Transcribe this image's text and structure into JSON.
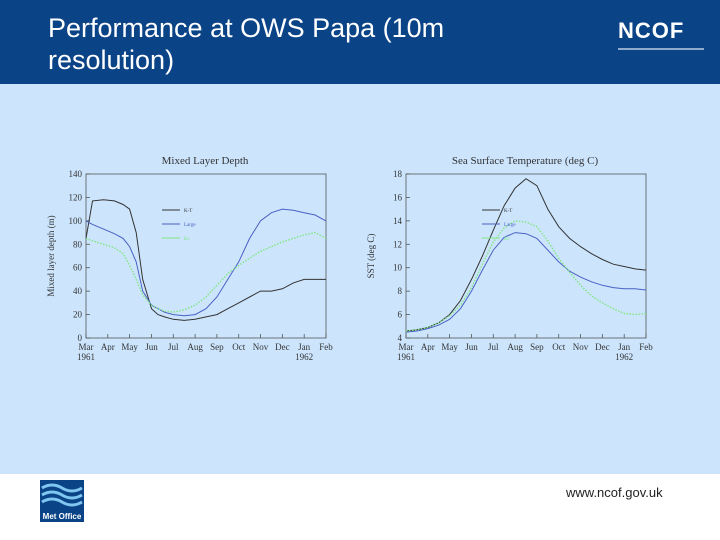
{
  "header": {
    "title": "Performance at OWS Papa (10m resolution)",
    "title_line1": "Performance at OWS Papa (10m",
    "title_line2": "resolution)",
    "brand": "NCOF"
  },
  "footer": {
    "url": "www.ncof.gov.uk",
    "logo_text": "Met Office"
  },
  "colors": {
    "header": "#0a4487",
    "panel": "#cce5fd",
    "series_dark": "#333333",
    "series_blue": "#4a60c4",
    "series_green": "#7fe57f"
  },
  "chart_data": [
    {
      "type": "line",
      "title": "Mixed Layer Depth",
      "ylabel": "Mixed layer depth (m)",
      "ylim": [
        0,
        140
      ],
      "yticks": [
        0,
        20,
        40,
        60,
        80,
        100,
        120,
        140
      ],
      "x_labels": [
        "Mar",
        "Apr",
        "May",
        "Jun",
        "Jul",
        "Aug",
        "Sep",
        "Oct",
        "Nov",
        "Dec",
        "Jan",
        "Feb"
      ],
      "x_year_labels": [
        {
          "label": "1961",
          "month_index": 0
        },
        {
          "label": "1962",
          "month_index": 10
        }
      ],
      "legend": [
        "K-T",
        "Large",
        "Kc"
      ],
      "series": [
        {
          "name": "K-T",
          "color": "#333333",
          "x": [
            0,
            0.3,
            0.8,
            1.3,
            1.7,
            2.0,
            2.3,
            2.6,
            3.0,
            3.3,
            3.6,
            4.0,
            4.5,
            5.0,
            5.5,
            6.0,
            6.5,
            7.0,
            7.5,
            8.0,
            8.5,
            9.0,
            9.5,
            10.0,
            10.5,
            11.0
          ],
          "values": [
            85,
            117,
            118,
            117,
            114,
            110,
            90,
            50,
            25,
            20,
            18,
            16,
            15,
            16,
            18,
            20,
            25,
            30,
            35,
            40,
            40,
            42,
            47,
            50,
            50,
            50
          ]
        },
        {
          "name": "Large",
          "color": "#4a60c4",
          "x": [
            0,
            0.3,
            0.8,
            1.3,
            1.7,
            2.0,
            2.3,
            2.6,
            3.0,
            3.3,
            3.6,
            4.0,
            4.5,
            5.0,
            5.5,
            6.0,
            6.5,
            7.0,
            7.5,
            8.0,
            8.5,
            9.0,
            9.5,
            10.0,
            10.5,
            11.0
          ],
          "values": [
            100,
            97,
            93,
            89,
            85,
            78,
            65,
            40,
            28,
            25,
            22,
            20,
            19,
            20,
            25,
            35,
            50,
            65,
            85,
            100,
            107,
            110,
            109,
            107,
            105,
            100
          ]
        },
        {
          "name": "Kc",
          "color": "#7fe57f",
          "x": [
            0,
            0.3,
            0.8,
            1.3,
            1.7,
            2.0,
            2.3,
            2.6,
            3.0,
            3.3,
            3.6,
            4.0,
            4.5,
            5.0,
            5.5,
            6.0,
            6.5,
            7.0,
            7.5,
            8.0,
            8.5,
            9.0,
            9.5,
            10.0,
            10.5,
            11.0
          ],
          "values": [
            85,
            83,
            80,
            77,
            72,
            62,
            50,
            37,
            28,
            25,
            23,
            22,
            24,
            28,
            35,
            45,
            55,
            62,
            68,
            74,
            78,
            82,
            85,
            88,
            90,
            85
          ]
        }
      ]
    },
    {
      "type": "line",
      "title": "Sea Surface Temperature (deg C)",
      "ylabel": "SST (deg C)",
      "ylim": [
        4,
        18
      ],
      "yticks": [
        4,
        6,
        8,
        10,
        12,
        14,
        16,
        18
      ],
      "x_labels": [
        "Mar",
        "Apr",
        "May",
        "Jun",
        "Jul",
        "Aug",
        "Sep",
        "Oct",
        "Nov",
        "Dec",
        "Jan",
        "Feb"
      ],
      "x_year_labels": [
        {
          "label": "1961",
          "month_index": 0
        },
        {
          "label": "1962",
          "month_index": 10
        }
      ],
      "legend": [
        "K-T",
        "Large",
        "Kc"
      ],
      "series": [
        {
          "name": "K-T",
          "color": "#333333",
          "x": [
            0,
            0.5,
            1.0,
            1.5,
            2.0,
            2.5,
            3.0,
            3.5,
            4.0,
            4.5,
            5.0,
            5.5,
            6.0,
            6.5,
            7.0,
            7.5,
            8.0,
            8.5,
            9.0,
            9.5,
            10.0,
            10.5,
            11.0
          ],
          "values": [
            4.6,
            4.7,
            4.9,
            5.3,
            6.0,
            7.2,
            9.0,
            11.0,
            13.2,
            15.3,
            16.8,
            17.6,
            17.0,
            15.0,
            13.5,
            12.5,
            11.8,
            11.2,
            10.7,
            10.3,
            10.1,
            9.9,
            9.8
          ]
        },
        {
          "name": "Large",
          "color": "#4a60c4",
          "x": [
            0,
            0.5,
            1.0,
            1.5,
            2.0,
            2.5,
            3.0,
            3.5,
            4.0,
            4.5,
            5.0,
            5.5,
            6.0,
            6.5,
            7.0,
            7.5,
            8.0,
            8.5,
            9.0,
            9.5,
            10.0,
            10.5,
            11.0
          ],
          "values": [
            4.5,
            4.6,
            4.8,
            5.1,
            5.6,
            6.5,
            8.0,
            9.8,
            11.5,
            12.6,
            13.0,
            12.9,
            12.5,
            11.5,
            10.5,
            9.7,
            9.2,
            8.8,
            8.5,
            8.3,
            8.2,
            8.2,
            8.1
          ]
        },
        {
          "name": "Kc",
          "color": "#7fe57f",
          "x": [
            0,
            0.5,
            1.0,
            1.5,
            2.0,
            2.5,
            3.0,
            3.5,
            4.0,
            4.5,
            5.0,
            5.5,
            6.0,
            6.5,
            7.0,
            7.5,
            8.0,
            8.5,
            9.0,
            9.5,
            10.0,
            10.5,
            11.0
          ],
          "values": [
            4.6,
            4.7,
            4.9,
            5.3,
            5.9,
            6.8,
            8.3,
            10.3,
            12.2,
            13.4,
            14.0,
            13.9,
            13.5,
            12.3,
            10.8,
            9.6,
            8.5,
            7.6,
            7.0,
            6.5,
            6.1,
            6.0,
            6.1
          ]
        }
      ]
    }
  ]
}
